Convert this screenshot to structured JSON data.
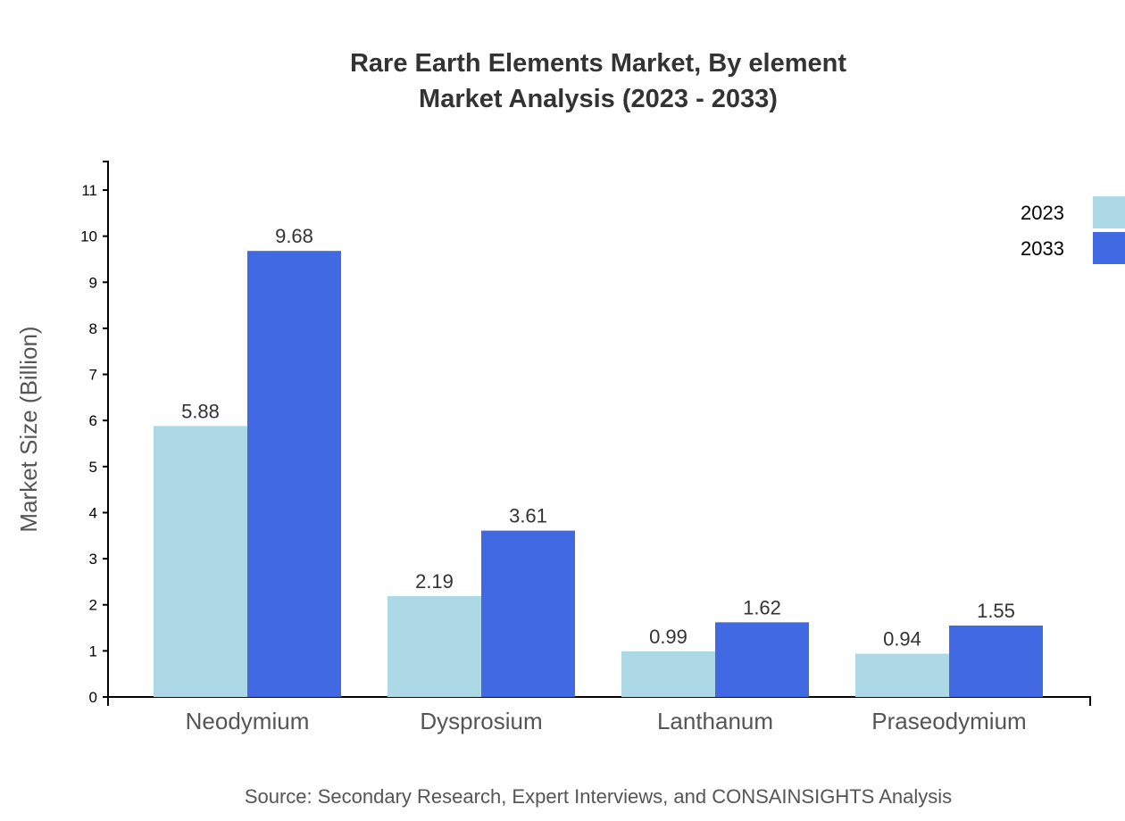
{
  "chart_data": {
    "type": "bar",
    "title": "Rare Earth Elements Market, By element",
    "subtitle": "Market Analysis (2023 - 2033)",
    "xlabel": "",
    "ylabel": "Market Size (Billion)",
    "ylim": [
      0,
      11.62
    ],
    "yticks": [
      0,
      1,
      2,
      3,
      4,
      5,
      6,
      7,
      8,
      9,
      10,
      11
    ],
    "categories": [
      "Neodymium",
      "Dysprosium",
      "Lanthanum",
      "Praseodymium"
    ],
    "series": [
      {
        "name": "2023",
        "color": "#ADD8E6",
        "values": [
          5.88,
          2.19,
          0.99,
          0.94
        ]
      },
      {
        "name": "2033",
        "color": "#4169E1",
        "values": [
          9.68,
          3.61,
          1.62,
          1.55
        ]
      }
    ],
    "grid": false,
    "legend_position": "top-right",
    "source": "Source: Secondary Research, Expert Interviews, and CONSAINSIGHTS Analysis"
  }
}
